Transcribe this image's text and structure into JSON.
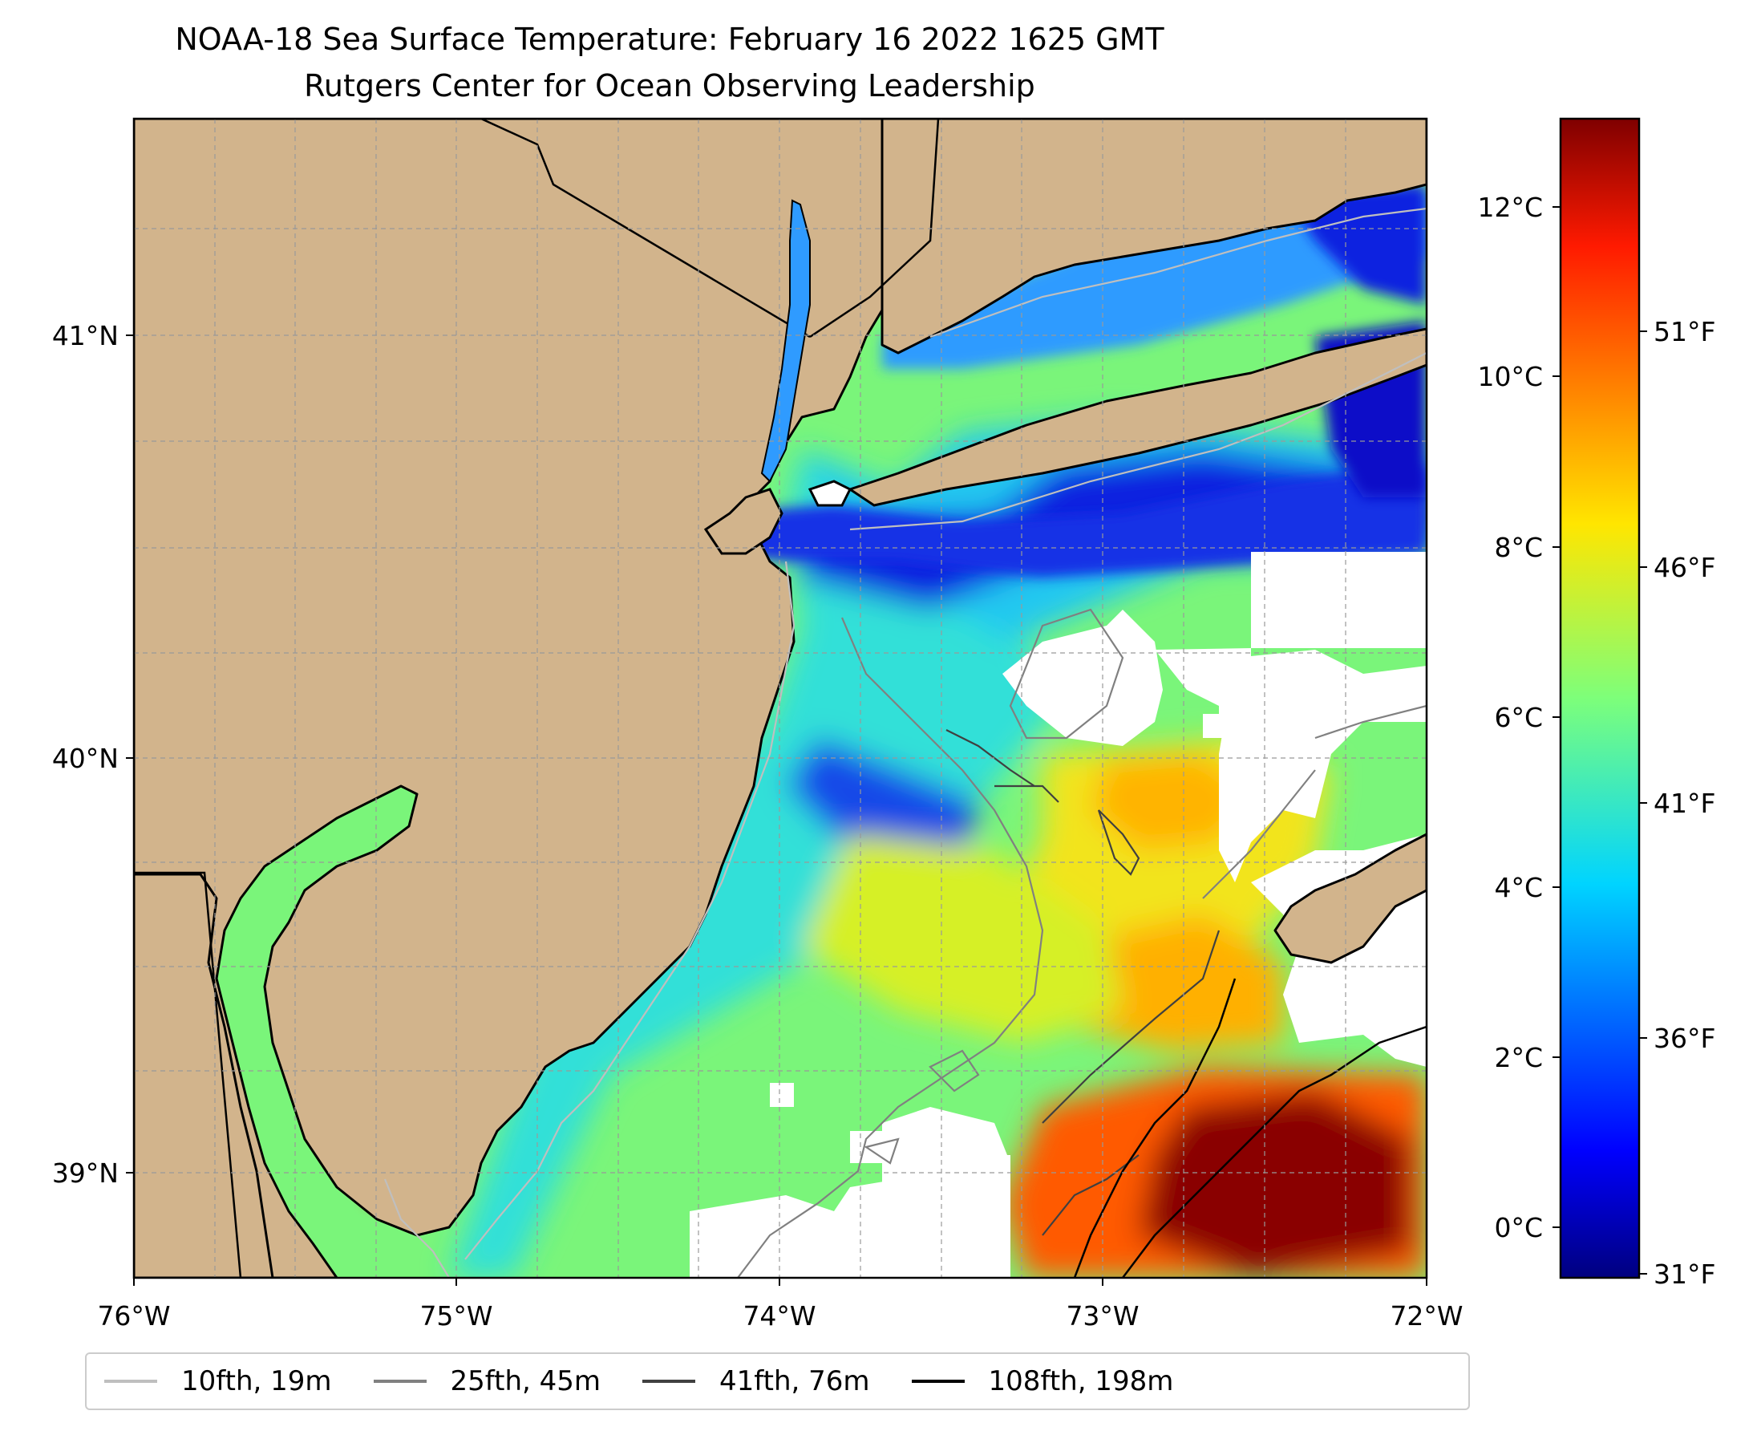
{
  "title_line1": "NOAA-18 Sea Surface Temperature: February 16 2022 1625 GMT",
  "title_line2": "Rutgers Center for Ocean Observing Leadership",
  "map": {
    "lon_range": [
      -76,
      -72
    ],
    "lat_range": [
      38.75,
      41.5
    ],
    "x_ticks": [
      "76°W",
      "75°W",
      "74°W",
      "73°W",
      "72°W"
    ],
    "y_ticks": [
      "41°N",
      "40°N",
      "39°N"
    ],
    "gridlines": true,
    "land_color": "#d2b48c",
    "no_data_color": "#ffffff"
  },
  "colorbar": {
    "colormap": "jet",
    "celsius_range": [
      -0.6,
      13.0
    ],
    "celsius_ticks": [
      "12°C",
      "10°C",
      "8°C",
      "6°C",
      "4°C",
      "2°C",
      "0°C"
    ],
    "fahrenheit_ticks": [
      "51°F",
      "46°F",
      "41°F",
      "36°F",
      "31°F"
    ]
  },
  "legend": {
    "placement": "bottom",
    "items": [
      {
        "label": "10fth, 19m",
        "color": "#bfbfbf"
      },
      {
        "label": "25fth, 45m",
        "color": "#808080"
      },
      {
        "label": "41fth, 76m",
        "color": "#404040"
      },
      {
        "label": "108fth, 198m",
        "color": "#000000"
      }
    ]
  }
}
